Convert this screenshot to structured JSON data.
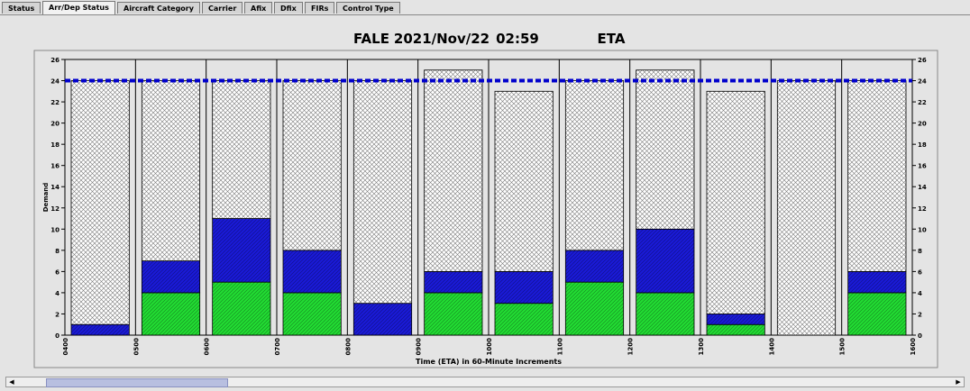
{
  "tabs": [
    "Status",
    "Arr/Dep Status",
    "Aircraft Category",
    "Carrier",
    "Afix",
    "Dfix",
    "FIRs",
    "Control Type"
  ],
  "active_tab": 1,
  "chart_data": {
    "type": "stacked-bar",
    "title": [
      "FALE",
      "2021/Nov/22",
      "02:59",
      "ETA"
    ],
    "ylabel": "Demand",
    "xlabel": "Time (ETA) in 60-Minute Increments",
    "xticks": [
      "0400",
      "0500",
      "0600",
      "0700",
      "0800",
      "0900",
      "1000",
      "1100",
      "1200",
      "1300",
      "1400",
      "1500",
      "1600"
    ],
    "series": [
      {
        "color": "#22dd33",
        "pattern": "hatch",
        "values": [
          0,
          4,
          5,
          4,
          0,
          4,
          3,
          5,
          4,
          1,
          0,
          4
        ]
      },
      {
        "color": "#1a1ad8",
        "pattern": "hatch",
        "values": [
          1,
          3,
          6,
          4,
          3,
          2,
          3,
          3,
          6,
          1,
          0,
          2
        ]
      },
      {
        "color": "#ffffff",
        "pattern": "crosshatch",
        "values": [
          23,
          17,
          13,
          16,
          21,
          19,
          17,
          16,
          15,
          21,
          24,
          18
        ]
      }
    ],
    "capacity": 24,
    "capacity_color": "#0000cc",
    "ylim": [
      0,
      26
    ],
    "yticks": [
      0,
      2,
      4,
      6,
      8,
      10,
      12,
      14,
      16,
      18,
      20,
      22,
      24,
      26
    ]
  }
}
